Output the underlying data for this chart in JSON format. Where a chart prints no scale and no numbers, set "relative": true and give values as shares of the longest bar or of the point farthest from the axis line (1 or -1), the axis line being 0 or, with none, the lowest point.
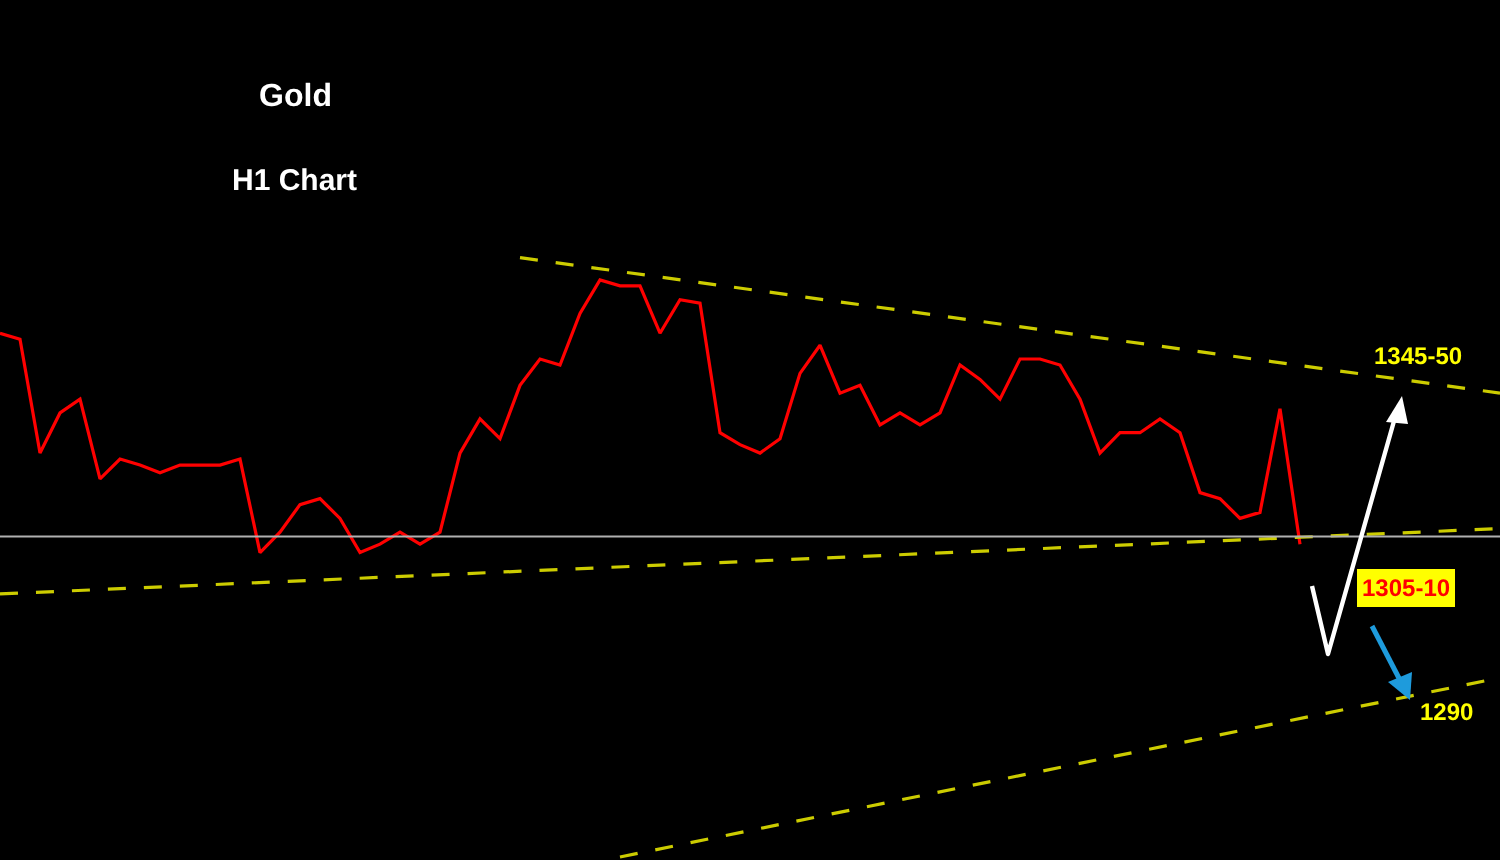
{
  "chart_data": {
    "type": "line",
    "title": "Gold",
    "subtitle": "H1 Chart",
    "relative": true,
    "marker": "none",
    "categories": [
      null,
      null,
      null,
      null,
      null,
      null,
      null,
      null,
      null,
      null,
      null,
      null,
      null,
      null,
      null,
      null,
      null,
      null,
      null,
      null,
      null,
      null,
      null,
      null,
      null,
      null,
      null,
      null,
      null,
      null,
      null,
      null,
      null,
      null,
      null,
      null,
      null,
      null,
      null,
      null,
      null,
      null,
      null,
      null,
      null,
      null,
      null,
      null,
      null,
      null,
      null,
      null,
      null,
      null,
      null,
      null,
      null,
      null,
      null,
      null,
      null,
      null,
      null,
      null,
      null,
      null,
      null,
      null,
      null,
      null,
      null,
      null,
      null,
      null,
      null,
      null
    ],
    "series": [
      {
        "color": "#ff0000",
        "line_style": "solid",
        "values": [
          0.874,
          0.864,
          0.674,
          0.741,
          0.764,
          0.631,
          0.664,
          0.654,
          0.641,
          0.654,
          0.654,
          0.654,
          0.664,
          0.508,
          0.542,
          0.588,
          0.598,
          0.565,
          0.508,
          0.522,
          0.542,
          0.522,
          0.542,
          0.674,
          0.731,
          0.698,
          0.787,
          0.831,
          0.821,
          0.907,
          0.963,
          0.953,
          0.953,
          0.874,
          0.93,
          0.924,
          0.708,
          0.688,
          0.674,
          0.698,
          0.807,
          0.854,
          0.774,
          0.787,
          0.721,
          0.741,
          0.721,
          0.741,
          0.821,
          0.797,
          0.764,
          0.831,
          0.831,
          0.821,
          0.764,
          0.674,
          0.708,
          0.708,
          0.731,
          0.708,
          0.608,
          0.598,
          0.565,
          0.575,
          0.748,
          0.522,
          null,
          null,
          null,
          null,
          null,
          null,
          null,
          null,
          null,
          null
        ]
      },
      {
        "color": "#cccc00",
        "line_style": "dashed",
        "values": [
          null,
          null,
          null,
          null,
          null,
          null,
          null,
          null,
          null,
          null,
          null,
          null,
          null,
          null,
          null,
          null,
          null,
          null,
          null,
          null,
          null,
          null,
          null,
          null,
          null,
          null,
          1.0,
          null,
          null,
          null,
          null,
          null,
          null,
          null,
          null,
          null,
          null,
          null,
          null,
          null,
          null,
          null,
          null,
          null,
          null,
          null,
          null,
          null,
          null,
          null,
          null,
          null,
          null,
          null,
          null,
          null,
          null,
          null,
          null,
          null,
          null,
          null,
          null,
          null,
          null,
          null,
          null,
          null,
          null,
          null,
          null,
          null,
          null,
          null,
          null,
          0.774
        ]
      },
      {
        "color": "#cccc00",
        "line_style": "dashed",
        "values": [
          0.439,
          null,
          null,
          null,
          null,
          null,
          null,
          null,
          null,
          null,
          null,
          null,
          null,
          null,
          null,
          null,
          null,
          null,
          null,
          null,
          null,
          null,
          null,
          null,
          null,
          null,
          null,
          null,
          null,
          null,
          null,
          null,
          null,
          null,
          null,
          null,
          null,
          null,
          null,
          null,
          null,
          null,
          null,
          null,
          null,
          null,
          null,
          null,
          null,
          null,
          null,
          null,
          null,
          null,
          null,
          null,
          null,
          null,
          null,
          null,
          null,
          null,
          null,
          null,
          null,
          null,
          null,
          null,
          null,
          null,
          null,
          null,
          null,
          null,
          null,
          0.548
        ]
      },
      {
        "color": "#cccc00",
        "line_style": "dashed",
        "values": [
          null,
          null,
          null,
          null,
          null,
          null,
          null,
          null,
          null,
          null,
          null,
          null,
          null,
          null,
          null,
          null,
          null,
          null,
          null,
          null,
          null,
          null,
          null,
          null,
          null,
          null,
          null,
          null,
          null,
          null,
          null,
          0.0,
          null,
          null,
          null,
          null,
          null,
          null,
          null,
          null,
          null,
          null,
          null,
          null,
          null,
          null,
          null,
          null,
          null,
          null,
          null,
          null,
          null,
          null,
          null,
          null,
          null,
          null,
          null,
          null,
          null,
          null,
          null,
          null,
          null,
          null,
          null,
          null,
          null,
          null,
          null,
          null,
          null,
          null,
          null,
          0.299
        ]
      }
    ],
    "ref_lines": [
      {
        "axis": "y",
        "value": 0.535,
        "color": "#b0b0b0",
        "line_style": "solid"
      }
    ],
    "annotations": [
      "1345-50",
      "1305-10",
      "1290"
    ]
  }
}
